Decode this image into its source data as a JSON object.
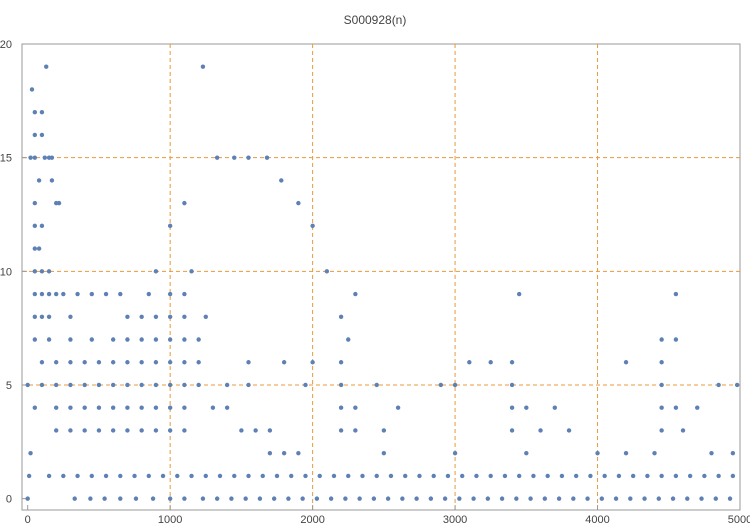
{
  "chart_data": {
    "type": "scatter",
    "title": "S000928(n)",
    "color": "#5e81b5",
    "grid_color": "#e89a3c",
    "xlim": [
      -40,
      5000
    ],
    "ylim": [
      -0.5,
      20
    ],
    "xticks": [
      0,
      1000,
      2000,
      3000,
      4000,
      5000
    ],
    "yticks": [
      0,
      5,
      10,
      15,
      20
    ],
    "xgrid": [
      1000,
      2000,
      3000,
      4000
    ],
    "ygrid": [
      5,
      10,
      15
    ],
    "x": [
      0,
      330,
      440,
      540,
      650,
      760,
      880,
      1000,
      1100,
      1230,
      1330,
      1430,
      1530,
      1630,
      1730,
      1830,
      1930,
      2030,
      2130,
      2230,
      2330,
      2430,
      2530,
      2630,
      2730,
      2830,
      2930,
      3030,
      3130,
      3230,
      3330,
      3430,
      3530,
      3630,
      3730,
      3830,
      3930,
      4030,
      4130,
      4230,
      4330,
      4430,
      4530,
      4630,
      4730,
      4830,
      4930,
      10,
      150,
      250,
      350,
      450,
      550,
      650,
      750,
      850,
      950,
      1050,
      1150,
      1250,
      1350,
      1450,
      1550,
      1650,
      1750,
      1850,
      1950,
      2050,
      2150,
      2250,
      2350,
      2450,
      2550,
      2650,
      2750,
      2850,
      2950,
      3050,
      3150,
      3250,
      3350,
      3450,
      3550,
      3650,
      3750,
      3850,
      3950,
      4050,
      4150,
      4250,
      4350,
      4450,
      4550,
      4650,
      4750,
      4850,
      4950,
      20,
      1700,
      1800,
      1900,
      2500,
      3000,
      3500,
      4000,
      4200,
      4400,
      4800,
      4950,
      200,
      300,
      400,
      500,
      600,
      700,
      800,
      900,
      1000,
      1100,
      1500,
      1600,
      1700,
      2200,
      2300,
      2500,
      3400,
      3600,
      3800,
      4450,
      4600,
      50,
      200,
      300,
      400,
      500,
      600,
      700,
      800,
      900,
      1000,
      1100,
      1300,
      1400,
      2200,
      2300,
      2600,
      3400,
      3500,
      3700,
      4450,
      4550,
      4700,
      0,
      100,
      200,
      300,
      400,
      500,
      600,
      700,
      800,
      900,
      1000,
      1100,
      1200,
      1400,
      1550,
      1950,
      2200,
      2450,
      2900,
      3000,
      3400,
      4450,
      4850,
      4980,
      100,
      200,
      300,
      400,
      500,
      600,
      700,
      800,
      900,
      1000,
      1100,
      1200,
      1550,
      1800,
      2000,
      2200,
      3100,
      3250,
      3400,
      4200,
      4450,
      50,
      150,
      300,
      450,
      600,
      700,
      800,
      900,
      1000,
      1100,
      1200,
      2250,
      4450,
      4550,
      50,
      100,
      150,
      300,
      700,
      800,
      900,
      1000,
      1100,
      1250,
      2200,
      50,
      100,
      150,
      200,
      250,
      350,
      450,
      550,
      650,
      850,
      1000,
      1100,
      2300,
      3450,
      4550,
      50,
      100,
      150,
      900,
      1150,
      2100,
      50,
      80,
      50,
      100,
      1000,
      2000,
      50,
      200,
      220,
      1100,
      1900,
      80,
      170,
      1780,
      20,
      50,
      120,
      150,
      170,
      1330,
      1450,
      1550,
      1680,
      50,
      100,
      50,
      100,
      30,
      130,
      1230
    ],
    "values": [
      0,
      0,
      0,
      0,
      0,
      0,
      0,
      0,
      0,
      0,
      0,
      0,
      0,
      0,
      0,
      0,
      0,
      0,
      0,
      0,
      0,
      0,
      0,
      0,
      0,
      0,
      0,
      0,
      0,
      0,
      0,
      0,
      0,
      0,
      0,
      0,
      0,
      0,
      0,
      0,
      0,
      0,
      0,
      0,
      0,
      0,
      0,
      1,
      1,
      1,
      1,
      1,
      1,
      1,
      1,
      1,
      1,
      1,
      1,
      1,
      1,
      1,
      1,
      1,
      1,
      1,
      1,
      1,
      1,
      1,
      1,
      1,
      1,
      1,
      1,
      1,
      1,
      1,
      1,
      1,
      1,
      1,
      1,
      1,
      1,
      1,
      1,
      1,
      1,
      1,
      1,
      1,
      1,
      1,
      1,
      1,
      1,
      2,
      2,
      2,
      2,
      2,
      2,
      2,
      2,
      2,
      2,
      2,
      2,
      3,
      3,
      3,
      3,
      3,
      3,
      3,
      3,
      3,
      3,
      3,
      3,
      3,
      3,
      3,
      3,
      3,
      3,
      3,
      3,
      3,
      4,
      4,
      4,
      4,
      4,
      4,
      4,
      4,
      4,
      4,
      4,
      4,
      4,
      4,
      4,
      4,
      4,
      4,
      4,
      4,
      4,
      4,
      5,
      5,
      5,
      5,
      5,
      5,
      5,
      5,
      5,
      5,
      5,
      5,
      5,
      5,
      5,
      5,
      5,
      5,
      5,
      5,
      5,
      5,
      5,
      5,
      6,
      6,
      6,
      6,
      6,
      6,
      6,
      6,
      6,
      6,
      6,
      6,
      6,
      6,
      6,
      6,
      6,
      6,
      6,
      6,
      6,
      7,
      7,
      7,
      7,
      7,
      7,
      7,
      7,
      7,
      7,
      7,
      7,
      7,
      7,
      8,
      8,
      8,
      8,
      8,
      8,
      8,
      8,
      8,
      8,
      8,
      9,
      9,
      9,
      9,
      9,
      9,
      9,
      9,
      9,
      9,
      9,
      9,
      9,
      9,
      9,
      10,
      10,
      10,
      10,
      10,
      10,
      11,
      11,
      12,
      12,
      12,
      12,
      13,
      13,
      13,
      13,
      13,
      14,
      14,
      14,
      15,
      15,
      15,
      15,
      15,
      15,
      15,
      15,
      15,
      16,
      16,
      17,
      17,
      18,
      19,
      19
    ]
  }
}
